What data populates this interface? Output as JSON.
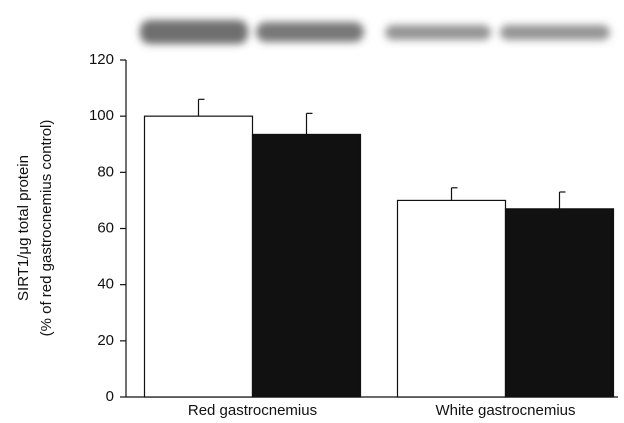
{
  "chart_data": {
    "type": "bar",
    "y_label": [
      "SIRT1/μg total protein",
      "(% of red gastrocnemius control)"
    ],
    "categories": [
      "Red gastrocnemius",
      "White gastrocnemius"
    ],
    "series": [
      {
        "color": "#ffffff",
        "values": [
          100,
          70
        ],
        "errors": [
          6,
          4.5
        ]
      },
      {
        "color": "#111111",
        "values": [
          93.5,
          67
        ],
        "errors": [
          7.5,
          6
        ]
      }
    ],
    "ylim": [
      0,
      120
    ],
    "yticks": [
      0,
      20,
      40,
      60,
      80,
      100,
      120
    ]
  }
}
